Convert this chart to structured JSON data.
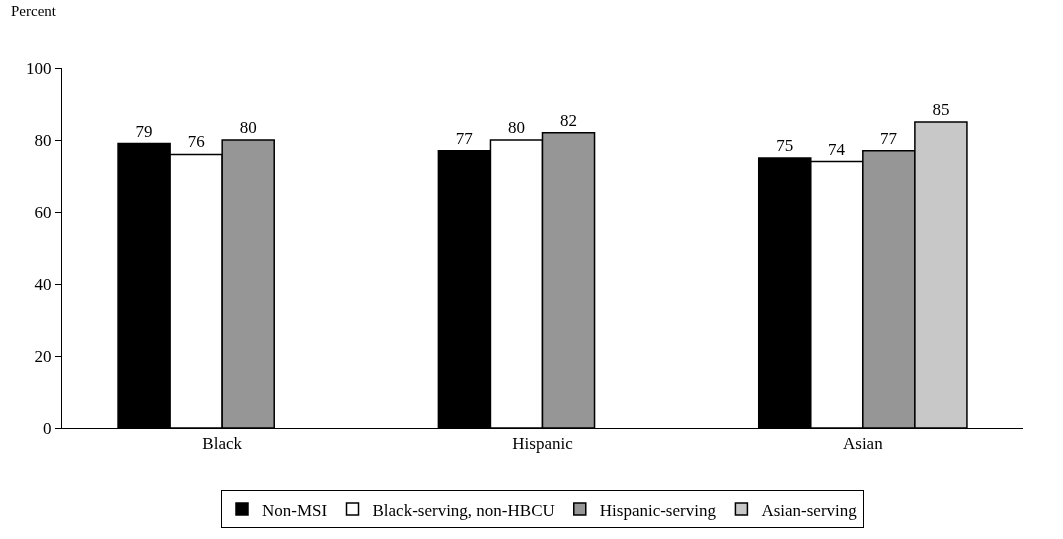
{
  "chart_data": {
    "type": "bar",
    "ylabel": "Percent",
    "categories": [
      "Black",
      "Hispanic",
      "Asian"
    ],
    "series": [
      {
        "name": "Non-MSI",
        "color": "#000000",
        "values": [
          79,
          77,
          75
        ]
      },
      {
        "name": "Black-serving, non-HBCU",
        "color": "#ffffff",
        "values": [
          76,
          80,
          74
        ]
      },
      {
        "name": "Hispanic-serving",
        "color": "#969696",
        "values": [
          80,
          82,
          77
        ]
      },
      {
        "name": "Asian-serving",
        "color": "#c8c8c8",
        "values": [
          null,
          null,
          85
        ]
      }
    ],
    "ylim": [
      0,
      100
    ],
    "yticks": [
      0,
      20,
      40,
      60,
      80,
      100
    ],
    "grid": false,
    "legend": "bottom",
    "data_labels": true
  }
}
